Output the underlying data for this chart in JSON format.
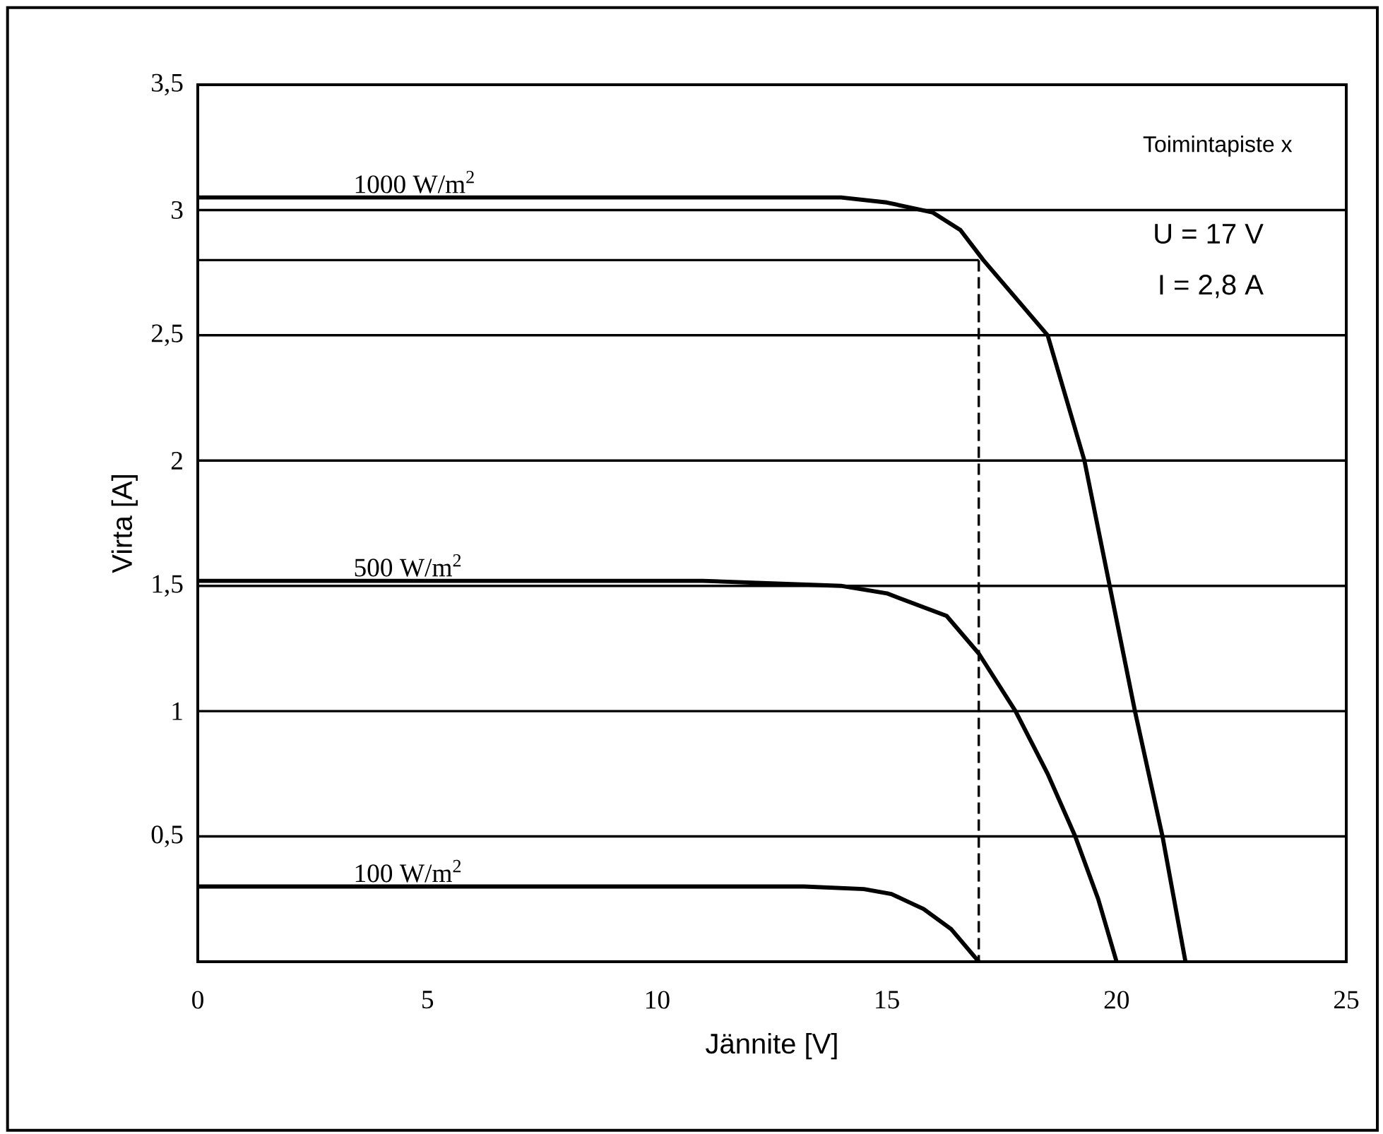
{
  "chart_data": {
    "type": "line",
    "xlabel": "Jännite [V]",
    "ylabel": "Virta [A]",
    "xlim": [
      0,
      25
    ],
    "ylim": [
      0,
      3.5
    ],
    "xticks": [
      0,
      5,
      10,
      15,
      20,
      25
    ],
    "yticks": [
      {
        "value": 0,
        "label": null
      },
      {
        "value": 0.5,
        "label": "0,5"
      },
      1,
      {
        "value": 1.5,
        "label": "1,5"
      },
      2,
      {
        "value": 2.5,
        "label": "2,5"
      },
      3,
      {
        "value": 3.5,
        "label": "3,5"
      }
    ],
    "grid": "y",
    "marker": "none",
    "series": [
      {
        "name": "1000 W/m$^{2}$",
        "color": "#000000",
        "x": [
          0,
          14,
          15,
          16,
          16.6,
          17.1,
          17.8,
          18.5,
          19.3,
          19.85,
          20.4,
          21.0,
          21.5
        ],
        "values": [
          3.05,
          3.05,
          3.03,
          2.99,
          2.92,
          2.8,
          2.65,
          2.5,
          2.0,
          1.5,
          1.0,
          0.5,
          0
        ]
      },
      {
        "name": "500 W/m$^{2}$",
        "color": "#000000",
        "x": [
          0,
          11,
          14,
          15,
          16.3,
          17,
          17.8,
          18.5,
          19.1,
          19.6,
          20
        ],
        "values": [
          1.52,
          1.52,
          1.5,
          1.47,
          1.38,
          1.23,
          1.0,
          0.75,
          0.5,
          0.25,
          0
        ]
      },
      {
        "name": "100 W/m$^{2}$",
        "color": "#000000",
        "x": [
          0,
          13.2,
          14.5,
          15.1,
          15.8,
          16.4,
          17
        ],
        "values": [
          0.3,
          0.3,
          0.29,
          0.27,
          0.21,
          0.13,
          0
        ]
      },
      {
        "color": "#000000",
        "x": [
          0,
          17
        ],
        "values": [
          2.8,
          2.8
        ],
        "line_style": "solid"
      },
      {
        "color": "#000000",
        "x": [
          17,
          17
        ],
        "values": [
          2.8,
          0
        ],
        "line_style": "dashed"
      }
    ],
    "annotations": [
      "Toimintapiste x",
      "U = 17 V",
      "I = 2,8 A"
    ]
  }
}
